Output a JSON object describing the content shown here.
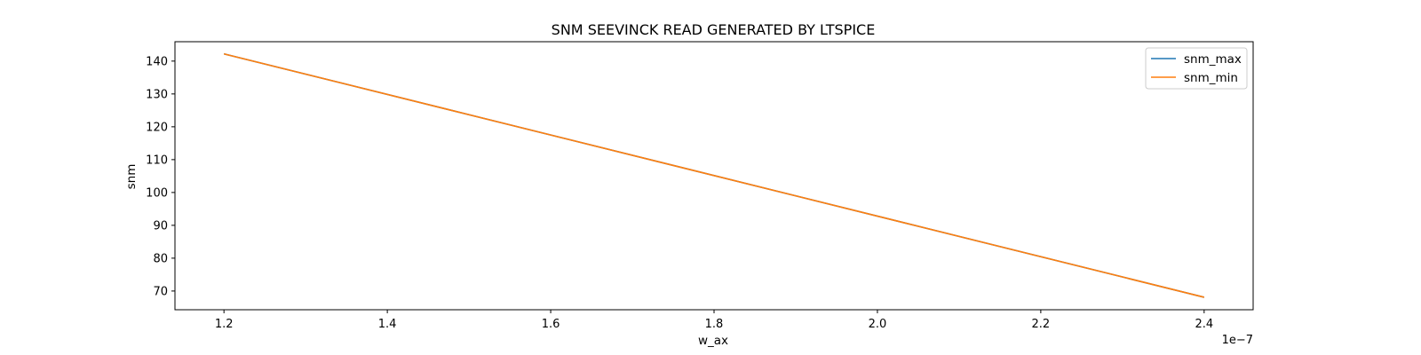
{
  "chart_data": {
    "type": "line",
    "title": "SNM SEEVINCK READ GENERATED BY LTSPICE",
    "xlabel": "w_ax",
    "ylabel": "snm",
    "x_offset_text": "1e−7",
    "x_tick_values": [
      1.2,
      1.4,
      1.6,
      1.8,
      2.0,
      2.2,
      2.4
    ],
    "x_tick_labels": [
      "1.2",
      "1.4",
      "1.6",
      "1.8",
      "2.0",
      "2.2",
      "2.4"
    ],
    "y_tick_values": [
      70,
      80,
      90,
      100,
      110,
      120,
      130,
      140
    ],
    "y_tick_labels": [
      "70",
      "80",
      "90",
      "100",
      "110",
      "120",
      "130",
      "140"
    ],
    "xlim": [
      1.14,
      2.46
    ],
    "ylim": [
      64.3,
      145.9
    ],
    "grid": false,
    "legend_position": "top-right",
    "series": [
      {
        "name": "snm_max",
        "color": "#1f77b4",
        "x": [
          1.2,
          2.4
        ],
        "y": [
          142.2,
          68.1
        ]
      },
      {
        "name": "snm_min",
        "color": "#ff7f0e",
        "x": [
          1.2,
          2.4
        ],
        "y": [
          142.2,
          68.1
        ]
      }
    ]
  }
}
